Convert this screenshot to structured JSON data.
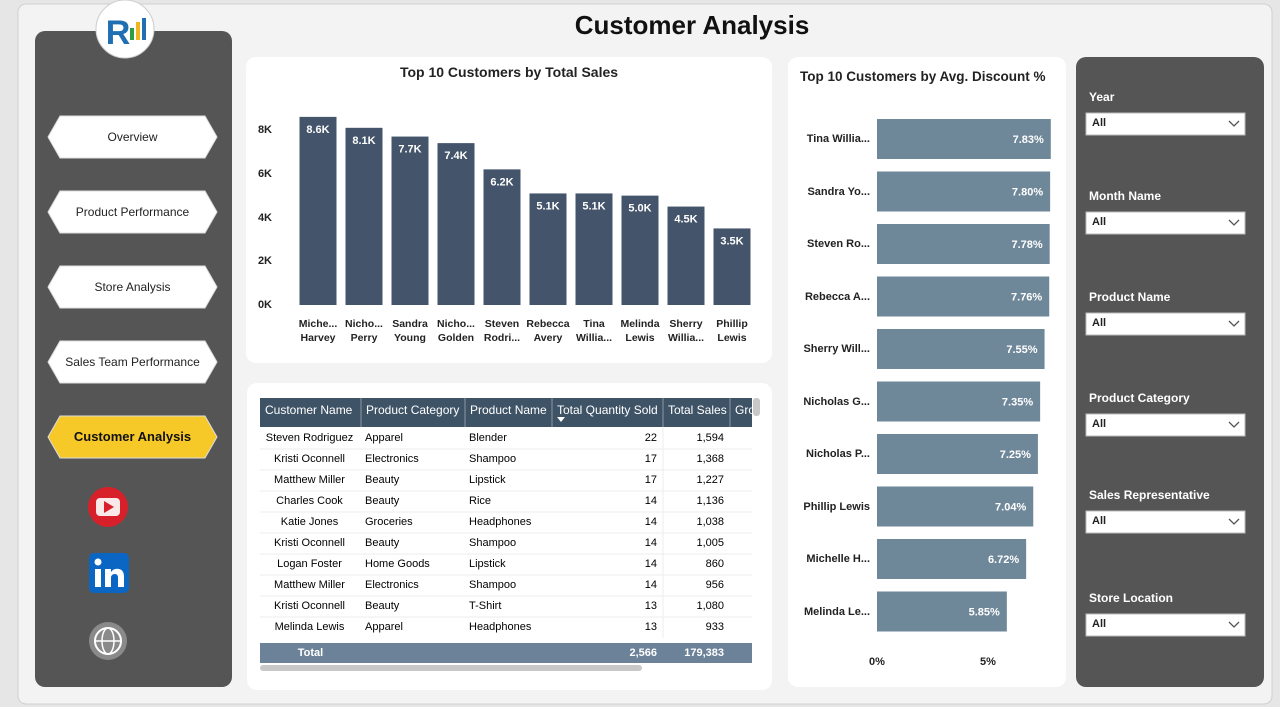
{
  "header": {
    "title": "Customer Analysis"
  },
  "nav": [
    "Overview",
    "Product Performance",
    "Store Analysis",
    "Sales Team Performance",
    "Customer Analysis"
  ],
  "chart_data": [
    {
      "type": "bar",
      "title": "Top 10 Customers by Total Sales",
      "categories": [
        "Miche... Harvey",
        "Nicho... Perry",
        "Sandra Young",
        "Nicho... Golden",
        "Steven Rodri...",
        "Rebecca Avery",
        "Tina Willia...",
        "Melinda Lewis",
        "Sherry Willia...",
        "Phillip Lewis"
      ],
      "values": [
        8600,
        8100,
        7700,
        7400,
        6200,
        5100,
        5100,
        5000,
        4500,
        3500
      ],
      "value_labels": [
        "8.6K",
        "8.1K",
        "7.7K",
        "7.4K",
        "6.2K",
        "5.1K",
        "5.1K",
        "5.0K",
        "4.5K",
        "3.5K"
      ],
      "color": "#44546a",
      "ylim": [
        0,
        8800
      ],
      "yticks": [
        {
          "value": 0,
          "label": "0K"
        },
        {
          "value": 2000,
          "label": "2K"
        },
        {
          "value": 4000,
          "label": "4K"
        },
        {
          "value": 6000,
          "label": "6K"
        },
        {
          "value": 8000,
          "label": "8K"
        }
      ]
    },
    {
      "type": "hbar",
      "title": "Top 10 Customers by Avg. Discount %",
      "categories": [
        "Tina Willia...",
        "Sandra Yo...",
        "Steven Ro...",
        "Rebecca A...",
        "Sherry Will...",
        "Nicholas G...",
        "Nicholas P...",
        "Phillip Lewis",
        "Michelle H...",
        "Melinda Le..."
      ],
      "values": [
        7.83,
        7.8,
        7.78,
        7.76,
        7.55,
        7.35,
        7.25,
        7.04,
        6.72,
        5.85
      ],
      "value_labels": [
        "7.83%",
        "7.80%",
        "7.78%",
        "7.76%",
        "7.55%",
        "7.35%",
        "7.25%",
        "7.04%",
        "6.72%",
        "5.85%"
      ],
      "color": "#6e8799",
      "xlim": [
        0,
        8.2
      ],
      "xticks": [
        {
          "value": 0,
          "label": "0%"
        },
        {
          "value": 5,
          "label": "5%"
        }
      ]
    }
  ],
  "table": {
    "columns": [
      "Customer Name",
      "Product Category",
      "Product Name",
      "Total Quantity Sold",
      "Total Sales",
      "Gro"
    ],
    "rows": [
      [
        "Steven Rodriguez",
        "Apparel",
        "Blender",
        "22",
        "1,594"
      ],
      [
        "Kristi Oconnell",
        "Electronics",
        "Shampoo",
        "17",
        "1,368"
      ],
      [
        "Matthew Miller",
        "Beauty",
        "Lipstick",
        "17",
        "1,227"
      ],
      [
        "Charles Cook",
        "Beauty",
        "Rice",
        "14",
        "1,136"
      ],
      [
        "Katie Jones",
        "Groceries",
        "Headphones",
        "14",
        "1,038"
      ],
      [
        "Kristi Oconnell",
        "Beauty",
        "Shampoo",
        "14",
        "1,005"
      ],
      [
        "Logan Foster",
        "Home Goods",
        "Lipstick",
        "14",
        "860"
      ],
      [
        "Matthew Miller",
        "Electronics",
        "Shampoo",
        "14",
        "956"
      ],
      [
        "Kristi Oconnell",
        "Beauty",
        "T-Shirt",
        "13",
        "1,080"
      ],
      [
        "Melinda Lewis",
        "Apparel",
        "Headphones",
        "13",
        "933"
      ]
    ],
    "total": {
      "label": "Total",
      "quantity": "2,566",
      "sales": "179,383"
    }
  },
  "filters": [
    {
      "label": "Year",
      "value": "All"
    },
    {
      "label": "Month Name",
      "value": "All"
    },
    {
      "label": "Product Name",
      "value": "All"
    },
    {
      "label": "Product Category",
      "value": "All"
    },
    {
      "label": "Sales Representative",
      "value": "All"
    },
    {
      "label": "Store Location",
      "value": "All"
    }
  ]
}
